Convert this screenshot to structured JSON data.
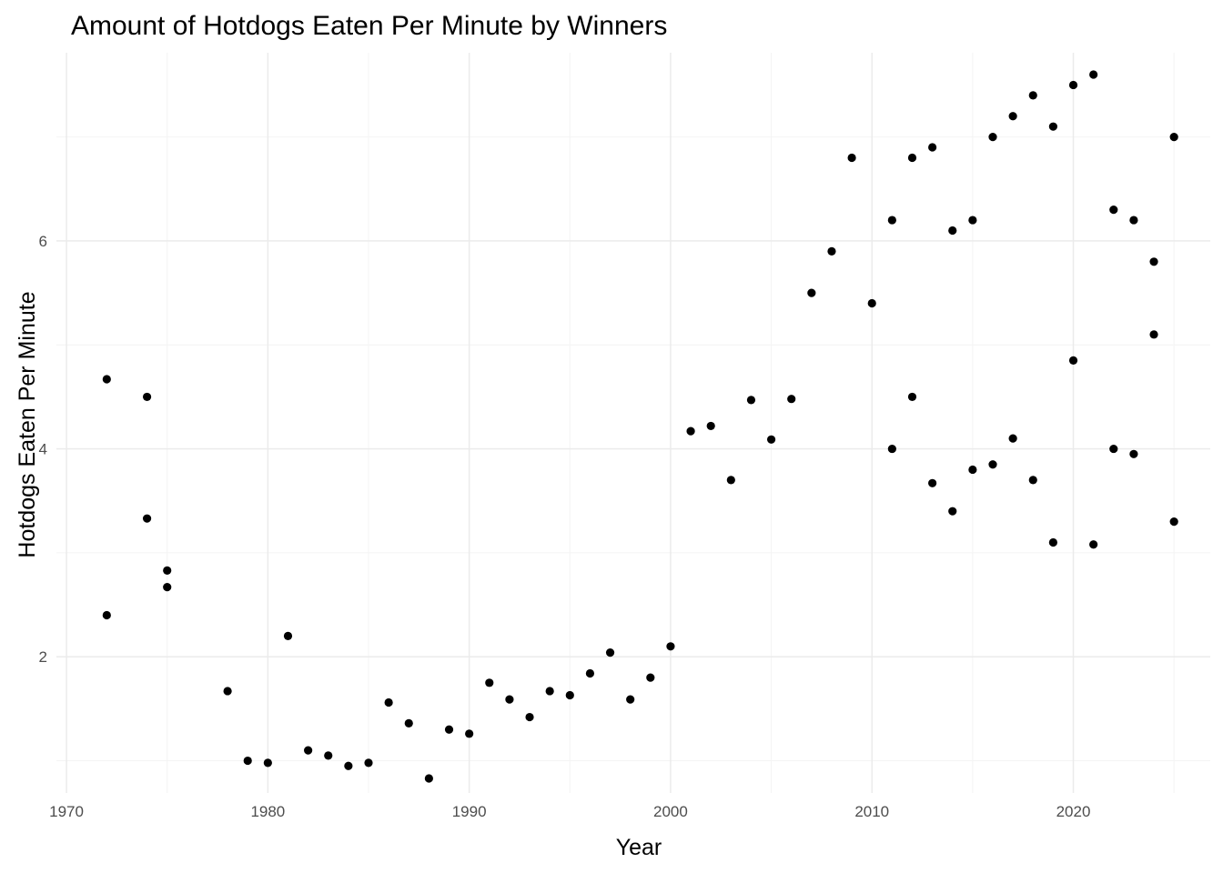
{
  "chart_data": {
    "type": "scatter",
    "title": "Amount of Hotdogs Eaten Per Minute by Winners",
    "xlabel": "Year",
    "ylabel": "Hotdogs Eaten Per Minute",
    "xlim": [
      1969.5,
      2026.8
    ],
    "ylim": [
      0.69,
      7.81
    ],
    "x_ticks": [
      1970,
      1980,
      1990,
      2000,
      2010,
      2020
    ],
    "y_ticks": [
      2,
      4,
      6
    ],
    "grid": true,
    "point_color": "#000000",
    "grid_major_color": "#ebebeb",
    "grid_minor_color": "#f4f4f4",
    "points": [
      [
        1972,
        4.67
      ],
      [
        1972,
        2.4
      ],
      [
        1974,
        4.5
      ],
      [
        1974,
        3.33
      ],
      [
        1975,
        2.83
      ],
      [
        1975,
        2.67
      ],
      [
        1978,
        1.67
      ],
      [
        1979,
        1.0
      ],
      [
        1980,
        0.98
      ],
      [
        1981,
        2.2
      ],
      [
        1982,
        1.1
      ],
      [
        1983,
        1.05
      ],
      [
        1984,
        0.95
      ],
      [
        1985,
        0.98
      ],
      [
        1986,
        1.56
      ],
      [
        1987,
        1.36
      ],
      [
        1988,
        0.83
      ],
      [
        1989,
        1.3
      ],
      [
        1990,
        1.26
      ],
      [
        1991,
        1.75
      ],
      [
        1992,
        1.59
      ],
      [
        1993,
        1.42
      ],
      [
        1994,
        1.67
      ],
      [
        1995,
        1.63
      ],
      [
        1996,
        1.84
      ],
      [
        1997,
        2.04
      ],
      [
        1998,
        1.59
      ],
      [
        1999,
        1.8
      ],
      [
        2000,
        2.1
      ],
      [
        2001,
        4.17
      ],
      [
        2002,
        4.22
      ],
      [
        2003,
        3.7
      ],
      [
        2004,
        4.47
      ],
      [
        2005,
        4.09
      ],
      [
        2006,
        4.48
      ],
      [
        2007,
        5.5
      ],
      [
        2008,
        5.9
      ],
      [
        2009,
        6.8
      ],
      [
        2010,
        5.4
      ],
      [
        2011,
        6.2
      ],
      [
        2011,
        4.0
      ],
      [
        2012,
        6.8
      ],
      [
        2012,
        4.5
      ],
      [
        2013,
        6.9
      ],
      [
        2013,
        3.67
      ],
      [
        2014,
        6.1
      ],
      [
        2014,
        3.4
      ],
      [
        2015,
        6.2
      ],
      [
        2015,
        3.8
      ],
      [
        2016,
        7.0
      ],
      [
        2016,
        3.85
      ],
      [
        2017,
        7.2
      ],
      [
        2017,
        4.1
      ],
      [
        2018,
        7.4
      ],
      [
        2018,
        3.7
      ],
      [
        2019,
        7.1
      ],
      [
        2019,
        3.1
      ],
      [
        2020,
        7.5
      ],
      [
        2020,
        4.85
      ],
      [
        2021,
        7.6
      ],
      [
        2021,
        3.08
      ],
      [
        2022,
        6.3
      ],
      [
        2022,
        4.0
      ],
      [
        2023,
        6.2
      ],
      [
        2023,
        3.95
      ],
      [
        2024,
        5.8
      ],
      [
        2024,
        5.1
      ],
      [
        2025,
        7.0
      ],
      [
        2025,
        3.3
      ]
    ]
  }
}
